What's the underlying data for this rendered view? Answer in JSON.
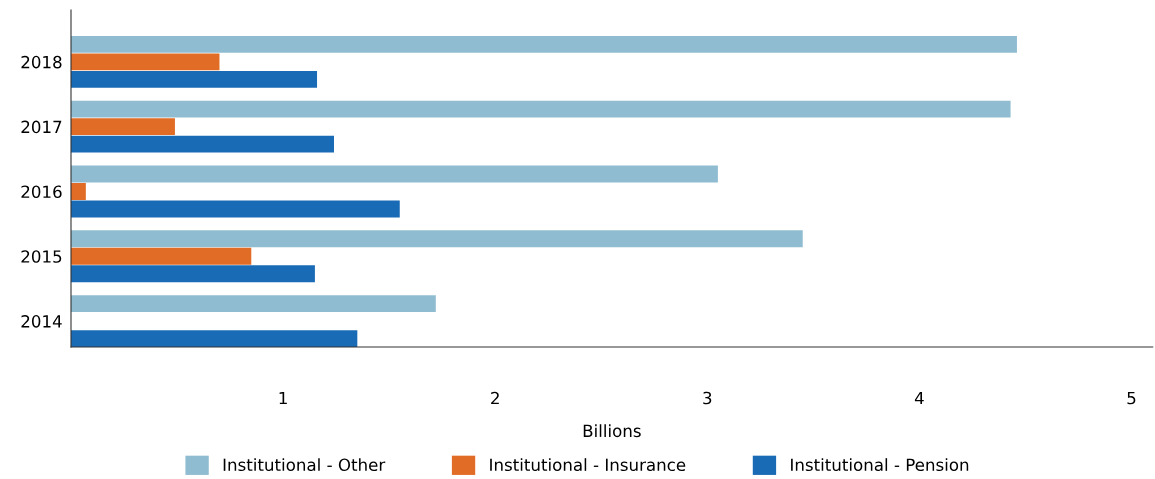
{
  "chart_data": {
    "type": "bar",
    "orientation": "horizontal",
    "categories": [
      "2018",
      "2017",
      "2016",
      "2015",
      "2014"
    ],
    "series": [
      {
        "name": "Institutional - Other",
        "color": "#8fbcd0",
        "values": [
          4.46,
          4.43,
          3.05,
          3.45,
          1.72
        ]
      },
      {
        "name": "Institutional - Insurance",
        "color": "#e06c26",
        "values": [
          0.7,
          0.49,
          0.07,
          0.85,
          null
        ]
      },
      {
        "name": "Institutional - Pension",
        "color": "#1a6bb5",
        "values": [
          1.16,
          1.24,
          1.55,
          1.15,
          1.35
        ]
      }
    ],
    "xlabel": "Billions",
    "xlim": [
      0,
      5.1
    ],
    "xticks": [
      1,
      2,
      3,
      4,
      5
    ],
    "grid": false,
    "legend": "bottom"
  }
}
